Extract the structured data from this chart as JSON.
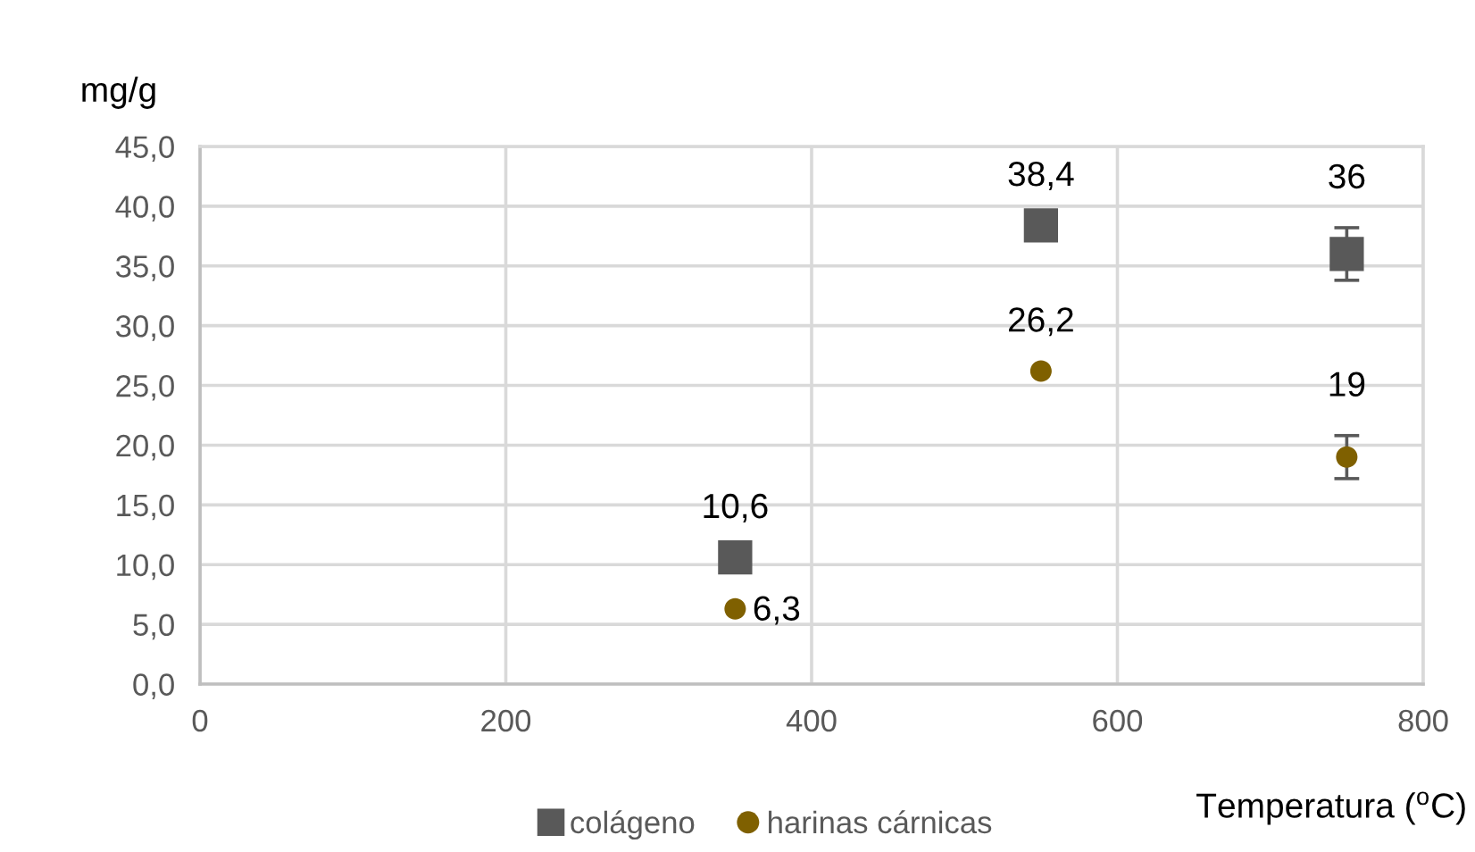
{
  "chart_data": {
    "type": "scatter",
    "xlabel": "Temperatura ($^{o}$C)",
    "ylabel": "mg/g",
    "xlim": [
      0,
      800
    ],
    "xticks": [
      0,
      200,
      400,
      600,
      800
    ],
    "ylim": [
      0,
      45
    ],
    "yticks": [
      {
        "value": 0,
        "label": "0,0"
      },
      {
        "value": 5,
        "label": "5,0"
      },
      {
        "value": 10,
        "label": "10,0"
      },
      {
        "value": 15,
        "label": "15,0"
      },
      {
        "value": 20,
        "label": "20,0"
      },
      {
        "value": 25,
        "label": "25,0"
      },
      {
        "value": 30,
        "label": "30,0"
      },
      {
        "value": 35,
        "label": "35,0"
      },
      {
        "value": 40,
        "label": "40,0"
      },
      {
        "value": 45,
        "label": "45,0"
      }
    ],
    "grid": true,
    "legend": "bottom",
    "series": [
      {
        "name": "colágeno",
        "color": "#595959",
        "marker": "square",
        "x": [
          350,
          550,
          750
        ],
        "values": [
          10.6,
          38.4,
          36
        ],
        "errors": [
          null,
          null,
          2.2
        ],
        "value_labels": [
          "10,6",
          "38,4",
          "36"
        ]
      },
      {
        "name": "harinas cárnicas",
        "color": "#7f6000",
        "marker": "circle",
        "x": [
          350,
          550,
          750
        ],
        "values": [
          6.3,
          26.2,
          19
        ],
        "errors": [
          null,
          null,
          1.8
        ],
        "value_labels": [
          "6,3",
          "26,2",
          "19"
        ]
      }
    ]
  }
}
